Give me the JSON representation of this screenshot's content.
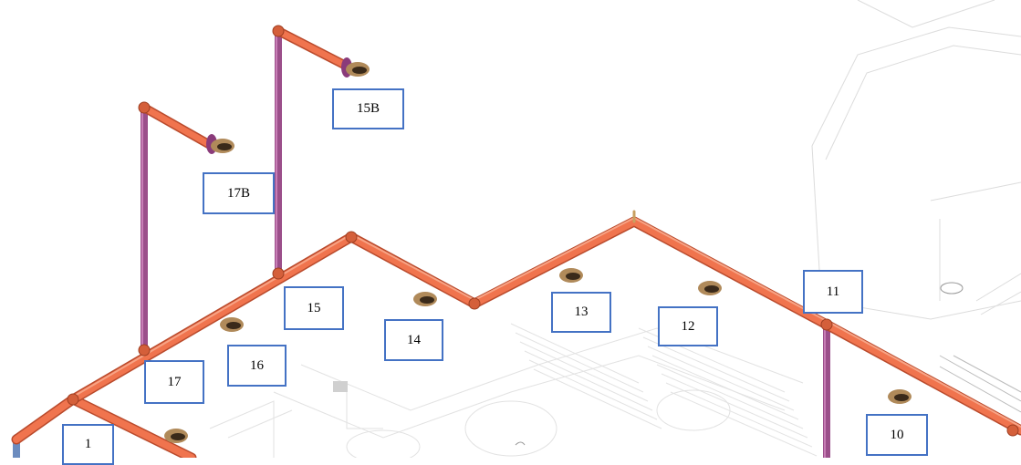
{
  "colors": {
    "pipe_main": "#f0744e",
    "pipe_shadow": "#b94a2c",
    "riser": "#9b4f8a",
    "label_border": "#4472c4",
    "background_lines": "#d9d9d9"
  },
  "labels": {
    "l1": "1",
    "l10": "10",
    "l11": "11",
    "l12": "12",
    "l13": "13",
    "l14": "14",
    "l15": "15",
    "l15b": "15B",
    "l16": "16",
    "l17": "17",
    "l17b": "17B"
  },
  "icons": {
    "sprinkler": "sprinkler-head-icon"
  }
}
